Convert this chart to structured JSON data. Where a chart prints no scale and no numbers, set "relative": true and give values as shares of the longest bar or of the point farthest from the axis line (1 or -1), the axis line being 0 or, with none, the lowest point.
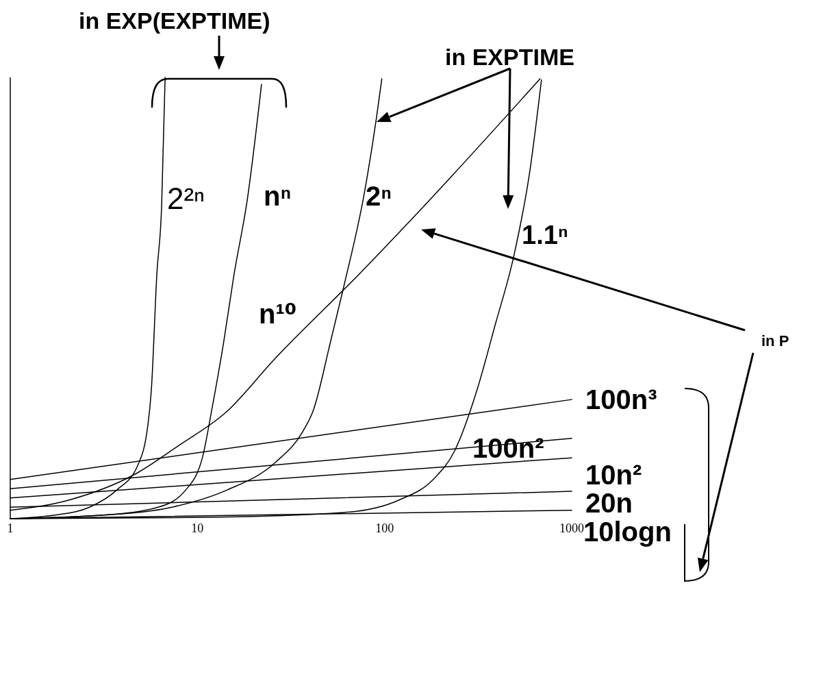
{
  "chart_data": {
    "type": "line",
    "relative": true,
    "log": "x",
    "xlim": [
      1,
      1000
    ],
    "xticks": [
      1,
      10,
      100,
      1000
    ],
    "line_style": "solid",
    "annotations": [
      "in EXP(EXPTIME)",
      "in EXPTIME",
      "in P"
    ],
    "series": [
      {
        "name": "2²ⁿ",
        "color": "#000000",
        "x": [
          1,
          1.73,
          2.65,
          3.71,
          4.79,
          5.44,
          5.67,
          6.07,
          6.44,
          6.72
        ],
        "values": [
          0,
          0.008,
          0.026,
          0.065,
          0.12,
          0.213,
          0.29,
          0.554,
          0.71,
          1
        ]
      },
      {
        "name": "nⁿ",
        "color": "#000000",
        "x": [
          1,
          3.14,
          6.17,
          8.66,
          10.7,
          11.9,
          13.8,
          15.7,
          18.5,
          22.0
        ],
        "values": [
          0,
          0.008,
          0.026,
          0.065,
          0.143,
          0.244,
          0.399,
          0.554,
          0.725,
          0.984
        ]
      },
      {
        "name": "2ⁿ",
        "color": "#000000",
        "x": [
          1,
          3.14,
          7.31,
          14.4,
          26.0,
          36.5,
          41.5,
          51.3,
          60.7,
          78.2,
          90.4,
          96.7
        ],
        "values": [
          0,
          0.008,
          0.026,
          0.065,
          0.127,
          0.197,
          0.244,
          0.399,
          0.528,
          0.741,
          0.907,
          0.997
        ]
      },
      {
        "name": "n¹⁰",
        "color": "#000000",
        "x": [
          1,
          2.05,
          4.79,
          7.96,
          14.2,
          26.0,
          73.1,
          142,
          678
        ],
        "values": [
          0.019,
          0.042,
          0.104,
          0.166,
          0.241,
          0.363,
          0.554,
          0.682,
          0.997
        ]
      },
      {
        "name": "1.1ⁿ",
        "color": "#000000",
        "x": [
          1,
          11.2,
          60.7,
          119,
          182,
          235,
          311,
          391,
          491,
          597,
          689
        ],
        "values": [
          0,
          0.003,
          0.014,
          0.042,
          0.089,
          0.151,
          0.29,
          0.441,
          0.596,
          0.787,
          0.994
        ]
      },
      {
        "name": "100n³",
        "color": "#000000",
        "x": [
          1,
          1000
        ],
        "values": [
          0.089,
          0.27
        ]
      },
      {
        "name": "100n²",
        "color": "#000000",
        "x": [
          1,
          1000
        ],
        "values": [
          0.068,
          0.182
        ]
      },
      {
        "name": "10n²",
        "color": "#000000",
        "x": [
          1,
          1000
        ],
        "values": [
          0.047,
          0.138
        ]
      },
      {
        "name": "20n",
        "color": "#000000",
        "x": [
          1,
          1000
        ],
        "values": [
          0.026,
          0.062
        ]
      },
      {
        "name": "10logn",
        "color": "#000000",
        "x": [
          1,
          1000
        ],
        "values": [
          0,
          0.019
        ]
      }
    ]
  }
}
